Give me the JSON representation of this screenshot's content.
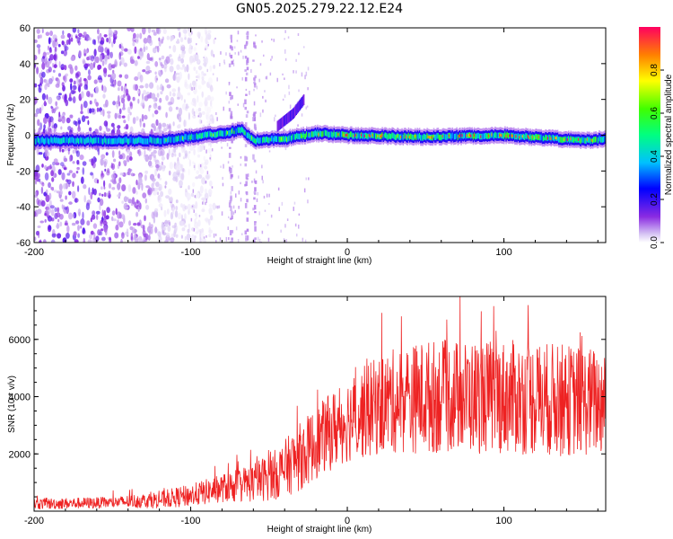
{
  "title": "GN05.2025.279.22.12.E24",
  "chart_data": [
    {
      "type": "heatmap",
      "xlabel": "Height of straight line (km)",
      "ylabel": "Frequency (Hz)",
      "xlim": [
        -200,
        165
      ],
      "ylim": [
        -60,
        60
      ],
      "x_ticks": [
        -200,
        -100,
        0,
        100
      ],
      "y_ticks": [
        -60,
        -40,
        -20,
        0,
        20,
        40,
        60
      ],
      "colorbar": {
        "label": "Normalized spectral amplitude",
        "range": [
          0,
          1
        ],
        "ticks": [
          0.0,
          0.2,
          0.4,
          0.6,
          0.8
        ]
      },
      "features": [
        {
          "name": "noise_region",
          "x_range": [
            -200,
            -95
          ],
          "freq_range": [
            -60,
            60
          ],
          "amplitude": 0.1
        },
        {
          "name": "main_trace",
          "freq_centerline": [
            {
              "x": -200,
              "f": -3
            },
            {
              "x": -150,
              "f": -3
            },
            {
              "x": -120,
              "f": -3
            },
            {
              "x": -100,
              "f": -1
            },
            {
              "x": -80,
              "f": 1
            },
            {
              "x": -68,
              "f": 3
            },
            {
              "x": -60,
              "f": -3
            },
            {
              "x": -40,
              "f": -2
            },
            {
              "x": -20,
              "f": 1
            },
            {
              "x": 0,
              "f": 0
            },
            {
              "x": 50,
              "f": -1
            },
            {
              "x": 100,
              "f": 0
            },
            {
              "x": 150,
              "f": -3
            },
            {
              "x": 165,
              "f": -2
            }
          ]
        },
        {
          "name": "rising_branch",
          "points": [
            {
              "x": -45,
              "f": 5
            },
            {
              "x": -35,
              "f": 12
            },
            {
              "x": -28,
              "f": 20
            }
          ]
        },
        {
          "name": "vertical_streaks",
          "x": [
            -75,
            -65,
            -60
          ],
          "freq_range": [
            -60,
            60
          ]
        }
      ]
    },
    {
      "type": "line",
      "xlabel": "Height of straight line (km)",
      "ylabel": "SNR (10 * v/v)",
      "xlim": [
        -200,
        165
      ],
      "ylim": [
        0,
        7500
      ],
      "x_ticks": [
        -200,
        -100,
        0,
        100
      ],
      "y_ticks": [
        2000,
        4000,
        6000
      ],
      "series": [
        {
          "name": "SNR",
          "color": "#ee2222",
          "envelope": [
            {
              "x": -200,
              "mean": 250,
              "spread": 200
            },
            {
              "x": -150,
              "mean": 300,
              "spread": 200
            },
            {
              "x": -120,
              "mean": 400,
              "spread": 300
            },
            {
              "x": -100,
              "mean": 550,
              "spread": 400
            },
            {
              "x": -80,
              "mean": 800,
              "spread": 500
            },
            {
              "x": -60,
              "mean": 1000,
              "spread": 700
            },
            {
              "x": -45,
              "mean": 1300,
              "spread": 900
            },
            {
              "x": -30,
              "mean": 1900,
              "spread": 1200
            },
            {
              "x": -15,
              "mean": 2600,
              "spread": 1300
            },
            {
              "x": 0,
              "mean": 3200,
              "spread": 1500
            },
            {
              "x": 25,
              "mean": 3800,
              "spread": 1800
            },
            {
              "x": 50,
              "mean": 4000,
              "spread": 2000
            },
            {
              "x": 100,
              "mean": 4000,
              "spread": 2000
            },
            {
              "x": 130,
              "mean": 3900,
              "spread": 2000
            },
            {
              "x": 165,
              "mean": 3800,
              "spread": 1900
            }
          ]
        }
      ]
    }
  ]
}
